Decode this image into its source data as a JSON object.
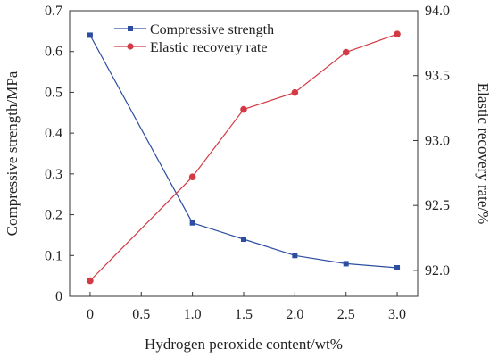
{
  "chart_data": {
    "type": "line",
    "xlabel": "Hydrogen peroxide content/wt%",
    "ylabel_left": "Compressive strength/MPa",
    "ylabel_right": "Elastic recovery rate/%",
    "x_ticks": [
      "0",
      "0.5",
      "1.0",
      "1.5",
      "2.0",
      "2.5",
      "3.0"
    ],
    "xlim": [
      -0.2,
      3.2
    ],
    "ylim_left": [
      0,
      0.7
    ],
    "ylim_right": [
      91.8,
      94.0
    ],
    "y_ticks_left": [
      "0",
      "0.1",
      "0.2",
      "0.3",
      "0.4",
      "0.5",
      "0.6",
      "0.7"
    ],
    "y_ticks_right": [
      "92.0",
      "92.5",
      "93.0",
      "93.5",
      "94.0"
    ],
    "grid": false,
    "legend_position": "top-left",
    "series": [
      {
        "name": "Compressive strength",
        "axis": "left",
        "marker": "square",
        "color": "#2d4ea0",
        "x": [
          0,
          1.0,
          1.5,
          2.0,
          2.5,
          3.0
        ],
        "y": [
          0.64,
          0.18,
          0.14,
          0.1,
          0.08,
          0.07
        ]
      },
      {
        "name": "Elastic recovery rate",
        "axis": "right",
        "marker": "circle",
        "color": "#d33a44",
        "x": [
          0,
          1.0,
          1.5,
          2.0,
          2.5,
          3.0
        ],
        "y": [
          91.92,
          92.72,
          93.24,
          93.37,
          93.68,
          93.82
        ]
      }
    ]
  }
}
